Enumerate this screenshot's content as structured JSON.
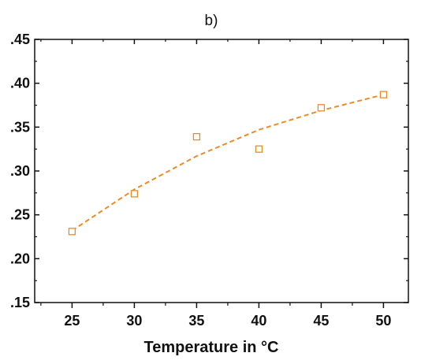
{
  "chart_data": {
    "type": "scatter",
    "panel_label": "b)",
    "title": "",
    "xlabel": "Temperature in °C",
    "ylabel": "",
    "xlim": [
      22,
      52
    ],
    "ylim": [
      0.15,
      0.45
    ],
    "x_ticks": [
      25,
      30,
      35,
      40,
      45,
      50
    ],
    "x_tick_labels": [
      "25",
      "30",
      "35",
      "40",
      "45",
      "50"
    ],
    "y_ticks": [
      0.15,
      0.2,
      0.25,
      0.3,
      0.35,
      0.4,
      0.45
    ],
    "y_tick_labels": [
      ".15",
      ".20",
      ".25",
      ".30",
      ".35",
      ".40",
      ".45"
    ],
    "grid": false,
    "series": [
      {
        "marker": "open-square",
        "color": "#f08a24",
        "x": [
          25,
          30,
          35,
          40,
          45,
          50
        ],
        "y": [
          0.231,
          0.274,
          0.339,
          0.325,
          0.372,
          0.387
        ]
      }
    ],
    "fit": {
      "style": "dashed",
      "color": "#f08a24",
      "x": [
        25,
        30,
        35,
        40,
        45,
        50
      ],
      "y": [
        0.232,
        0.279,
        0.317,
        0.347,
        0.369,
        0.387
      ]
    }
  }
}
